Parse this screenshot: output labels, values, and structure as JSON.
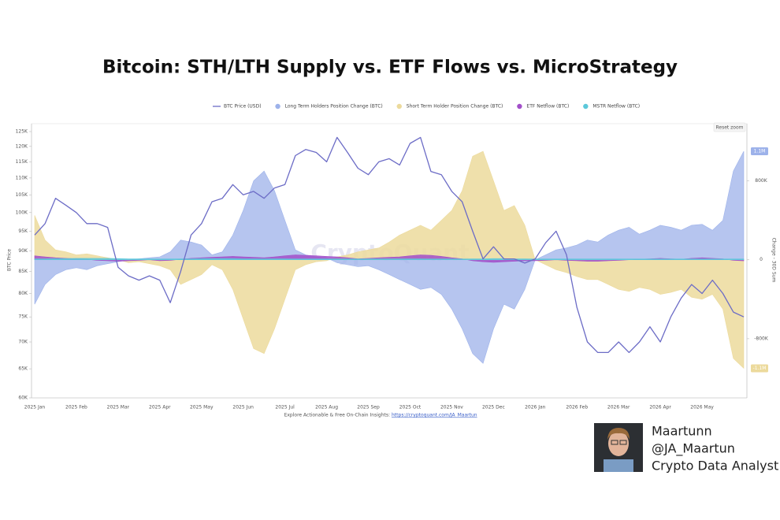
{
  "chart_data": {
    "type": "line",
    "title": "Bitcoin: STH/LTH Supply vs. ETF Flows vs. MicroStrategy",
    "y_label": "BTC Price",
    "y2_label": "Change - 30D Sum",
    "reset_button": "Reset zoom",
    "watermark": "CryptoQuant",
    "source_note": "Explore Actionable & Free On-Chain Insights:",
    "source_link": "https://cryptoquant.com/JA_Maartun",
    "log_y": true,
    "grid": false,
    "legend_position": "top",
    "ylim": [
      60000,
      125000
    ],
    "yticks": [
      {
        "value": 60000,
        "label": "60K"
      },
      {
        "value": 65000,
        "label": "65K"
      },
      {
        "value": 70000,
        "label": "70K"
      },
      {
        "value": 75000,
        "label": "75K"
      },
      {
        "value": 80000,
        "label": "80K"
      },
      {
        "value": 85000,
        "label": "85K"
      },
      {
        "value": 90000,
        "label": "90K"
      },
      {
        "value": 95000,
        "label": "95K"
      },
      {
        "value": 100000,
        "label": "100K"
      },
      {
        "value": 105000,
        "label": "105K"
      },
      {
        "value": 110000,
        "label": "110K"
      },
      {
        "value": 115000,
        "label": "115K"
      },
      {
        "value": 120000,
        "label": "120K"
      },
      {
        "value": 125000,
        "label": "125K"
      }
    ],
    "y2lim": [
      -1400000,
      1300000
    ],
    "y2ticks": [
      {
        "value": 800000,
        "label": "800K"
      },
      0,
      {
        "value": -800000,
        "label": "-800K"
      }
    ],
    "categories": [
      "2025 Jan",
      null,
      null,
      null,
      "2025 Feb",
      null,
      null,
      null,
      "2025 Mar",
      null,
      null,
      null,
      "2025 Apr",
      null,
      null,
      null,
      "2025 May",
      null,
      null,
      null,
      "2025 Jun",
      null,
      null,
      null,
      "2025 Jul",
      null,
      null,
      null,
      "2025 Aug",
      null,
      null,
      null,
      "2025 Sep",
      null,
      null,
      null,
      "2025 Oct",
      null,
      null,
      null,
      "2025 Nov",
      null,
      null,
      null,
      "2025 Dec",
      null,
      null,
      null,
      "2026 Jan",
      null,
      null,
      null,
      "2026 Feb",
      null,
      null,
      null,
      "2026 Mar",
      null,
      null,
      null,
      "2026 Apr",
      null,
      null,
      null,
      "2026 May",
      null,
      null,
      null,
      null
    ],
    "series": [
      {
        "name": "BTC Price (USD)",
        "type": "line",
        "axis": "y",
        "color": "#6c6cc6",
        "values": [
          94000,
          97000,
          104000,
          102000,
          100000,
          97000,
          97000,
          96000,
          86000,
          84000,
          83000,
          84000,
          83000,
          78000,
          85000,
          94000,
          97000,
          103000,
          104000,
          108000,
          105000,
          106000,
          104000,
          107000,
          108000,
          117000,
          119000,
          118000,
          115000,
          123000,
          118000,
          113000,
          111000,
          115000,
          116000,
          114000,
          121000,
          123000,
          112000,
          111000,
          106000,
          103000,
          95000,
          88000,
          91000,
          88000,
          88000,
          87000,
          88000,
          92000,
          95000,
          89000,
          77000,
          70000,
          68000,
          68000,
          70000,
          68000,
          70000,
          73000,
          70000,
          75000,
          79000,
          82000,
          80000,
          83000,
          80000,
          76000,
          75000
        ]
      },
      {
        "name": "Long Term Holders Position Change (BTC)",
        "type": "area",
        "axis": "y2",
        "color": "#9db2ea",
        "values": [
          -450000,
          -250000,
          -150000,
          -100000,
          -80000,
          -100000,
          -60000,
          -40000,
          -20000,
          0,
          10000,
          20000,
          30000,
          80000,
          200000,
          180000,
          150000,
          50000,
          80000,
          250000,
          500000,
          800000,
          900000,
          700000,
          400000,
          100000,
          50000,
          30000,
          20000,
          -30000,
          -50000,
          -70000,
          -60000,
          -100000,
          -150000,
          -200000,
          -250000,
          -300000,
          -280000,
          -350000,
          -500000,
          -700000,
          -950000,
          -1050000,
          -700000,
          -450000,
          -500000,
          -300000,
          0,
          50000,
          100000,
          120000,
          150000,
          200000,
          180000,
          250000,
          300000,
          330000,
          260000,
          300000,
          350000,
          330000,
          300000,
          350000,
          360000,
          300000,
          400000,
          900000,
          1100000
        ],
        "value_labels": [
          null,
          null,
          null,
          null,
          null,
          null,
          null,
          null,
          null,
          null,
          null,
          null,
          null,
          null,
          null,
          null,
          null,
          null,
          null,
          null,
          null,
          null,
          null,
          null,
          null,
          null,
          null,
          null,
          null,
          null,
          null,
          null,
          null,
          null,
          null,
          null,
          null,
          null,
          null,
          null,
          null,
          null,
          null,
          null,
          null,
          null,
          null,
          null,
          null,
          null,
          null,
          null,
          null,
          null,
          null,
          null,
          null,
          null,
          null,
          null,
          null,
          null,
          null,
          null,
          null,
          null,
          null,
          null,
          "1.1M"
        ]
      },
      {
        "name": "Short Term Holder Position Change (BTC)",
        "type": "area",
        "axis": "y2",
        "color": "#ecda9c",
        "values": [
          450000,
          200000,
          100000,
          80000,
          50000,
          60000,
          40000,
          20000,
          0,
          -30000,
          -20000,
          -40000,
          -60000,
          -100000,
          -250000,
          -200000,
          -150000,
          -50000,
          -100000,
          -300000,
          -600000,
          -900000,
          -950000,
          -700000,
          -400000,
          -100000,
          -50000,
          -20000,
          -10000,
          30000,
          50000,
          80000,
          100000,
          120000,
          180000,
          250000,
          300000,
          350000,
          300000,
          400000,
          500000,
          700000,
          1050000,
          1100000,
          800000,
          500000,
          550000,
          350000,
          0,
          -50000,
          -100000,
          -130000,
          -170000,
          -200000,
          -200000,
          -250000,
          -300000,
          -320000,
          -280000,
          -300000,
          -350000,
          -330000,
          -300000,
          -380000,
          -400000,
          -350000,
          -500000,
          -1000000,
          -1100000
        ],
        "value_labels": [
          null,
          null,
          null,
          null,
          null,
          null,
          null,
          null,
          null,
          null,
          null,
          null,
          null,
          null,
          null,
          null,
          null,
          null,
          null,
          null,
          null,
          null,
          null,
          null,
          null,
          null,
          null,
          null,
          null,
          null,
          null,
          null,
          null,
          null,
          null,
          null,
          null,
          null,
          null,
          null,
          null,
          null,
          null,
          null,
          null,
          null,
          null,
          null,
          null,
          null,
          null,
          null,
          null,
          null,
          null,
          null,
          null,
          null,
          null,
          null,
          null,
          null,
          null,
          null,
          null,
          null,
          null,
          null,
          "-1.1M"
        ]
      },
      {
        "name": "ETF Netflow (BTC)",
        "type": "area",
        "axis": "y2",
        "color": "#a24fc9",
        "values": [
          40000,
          30000,
          20000,
          15000,
          10000,
          5000,
          -5000,
          -10000,
          -15000,
          -10000,
          -5000,
          0,
          -10000,
          -5000,
          5000,
          15000,
          20000,
          25000,
          30000,
          35000,
          30000,
          25000,
          20000,
          30000,
          40000,
          50000,
          45000,
          40000,
          35000,
          30000,
          20000,
          10000,
          15000,
          20000,
          25000,
          30000,
          40000,
          50000,
          45000,
          35000,
          20000,
          10000,
          -10000,
          -20000,
          -25000,
          -20000,
          -15000,
          -10000,
          -10000,
          -5000,
          0,
          -5000,
          -10000,
          -15000,
          -15000,
          -10000,
          -5000,
          0,
          5000,
          10000,
          15000,
          10000,
          5000,
          15000,
          20000,
          15000,
          10000,
          -5000,
          -10000
        ]
      },
      {
        "name": "MSTR Netflow (BTC)",
        "type": "area",
        "axis": "y2",
        "color": "#5cc8da",
        "values": [
          10000,
          10000,
          12000,
          12000,
          15000,
          15000,
          15000,
          15000,
          12000,
          10000,
          10000,
          10000,
          8000,
          8000,
          10000,
          10000,
          12000,
          12000,
          12000,
          12000,
          10000,
          10000,
          10000,
          10000,
          10000,
          8000,
          8000,
          8000,
          8000,
          8000,
          8000,
          8000,
          10000,
          10000,
          10000,
          10000,
          10000,
          10000,
          8000,
          8000,
          8000,
          8000,
          10000,
          10000,
          12000,
          12000,
          10000,
          10000,
          8000,
          8000,
          8000,
          8000,
          8000,
          8000,
          8000,
          8000,
          8000,
          8000,
          8000,
          8000,
          8000,
          8000,
          8000,
          8000,
          8000,
          8000,
          8000,
          8000,
          8000
        ]
      }
    ]
  },
  "profile": {
    "name": "Maartunn",
    "handle": "@JA_Maartun",
    "role": "Crypto Data Analyst"
  }
}
